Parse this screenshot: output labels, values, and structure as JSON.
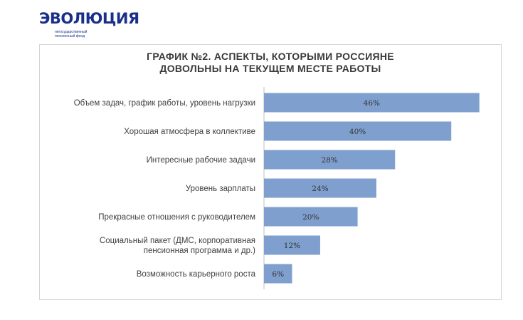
{
  "logo": {
    "brand_text": "ЭВОЛЮЦИЯ",
    "subtitle_line1": "негосударственный",
    "subtitle_line2": "пенсионный фонд",
    "color": "#1a2f8c"
  },
  "chart_data": {
    "type": "bar",
    "orientation": "horizontal",
    "title_lines": [
      "ГРАФИК №2. АСПЕКТЫ, КОТОРЫМИ РОССИЯНЕ",
      "ДОВОЛЬНЫ НА ТЕКУЩЕМ МЕСТЕ РАБОТЫ"
    ],
    "categories": [
      [
        "Объем задач, график работы,  уровень нагрузки"
      ],
      [
        "Хорошая атмосфера  в коллективе"
      ],
      [
        "Интересные  рабочие задачи"
      ],
      [
        "Уровень зарплаты"
      ],
      [
        "Прекрасные отношения  с руководителем"
      ],
      [
        "Социальный  пакет (ДМС, корпоративная",
        "пенсионная  программа и др.)"
      ],
      [
        "Возможность карьерного роста"
      ]
    ],
    "values": [
      46,
      40,
      28,
      24,
      20,
      12,
      6
    ],
    "data_labels": [
      "46%",
      "40%",
      "28%",
      "24%",
      "20%",
      "12%",
      "6%"
    ],
    "unit": "%",
    "xlim": [
      0,
      50
    ],
    "grid": false,
    "bar_color": "#7f9fce"
  }
}
